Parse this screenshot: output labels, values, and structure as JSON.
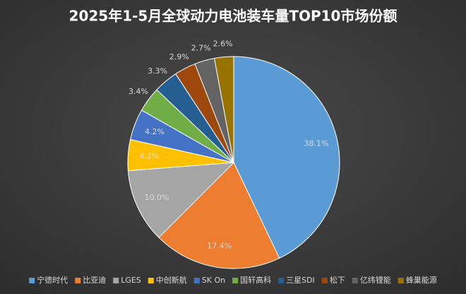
{
  "chart_data": {
    "type": "pie",
    "title": "2025年1-5月全球动力电池装车量TOP10市场份额",
    "categories": [
      "宁德时代",
      "比亚迪",
      "LGES",
      "中创新航",
      "SK On",
      "国轩高科",
      "三星SDI",
      "松下",
      "亿纬锂能",
      "蜂巢能源"
    ],
    "values": [
      38.1,
      17.4,
      10.0,
      4.2,
      4.2,
      3.4,
      3.3,
      2.9,
      2.7,
      2.6
    ],
    "value_labels": [
      "38.1%",
      "17.4%",
      "10.0%",
      "4.2%",
      "4.2%",
      "3.4%",
      "3.3%",
      "2.9%",
      "2.7%",
      "2.6%"
    ],
    "colors": [
      "#5b9bd5",
      "#ed7d31",
      "#a5a5a5",
      "#ffc000",
      "#4472c4",
      "#70ad47",
      "#255e91",
      "#9e480e",
      "#636363",
      "#997300"
    ],
    "legend": "bottom"
  }
}
